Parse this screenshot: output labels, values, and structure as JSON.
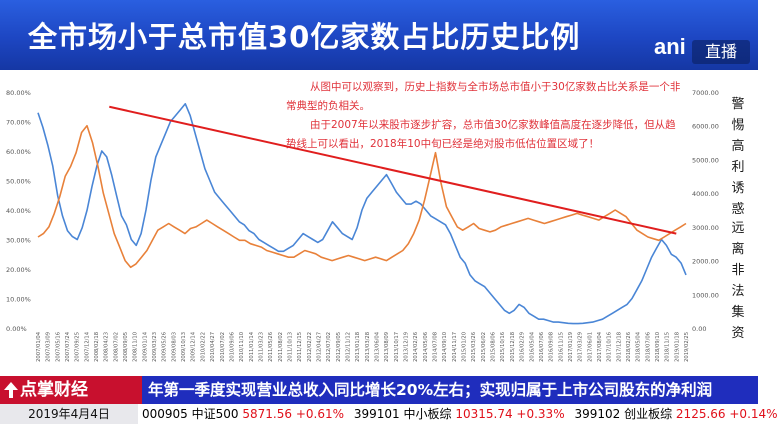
{
  "header": {
    "title": "全市场小于总市值30亿家数占比历史比例",
    "brand": "ani",
    "live_label": "直播"
  },
  "annotation": {
    "line1": "从图中可以观察到，历史上指数与全市场总市值小于30亿家数占比关系是一个非常典型的负相关。",
    "line2": "由于2007年以来股市逐步扩容，总市值30亿家数峰值高度在逐步降低，但从趋势线上可以看出，2018年10中旬已经是绝对股市低估位置区域了！"
  },
  "side_captions": {
    "first": "警惕高利诱惑",
    "second": "远离非法集资"
  },
  "colors": {
    "banner": "#1d46c2",
    "ticker_bg": "#1f2dbd",
    "logo_bg": "#c8102e",
    "up": "#e0101a",
    "series_blue": "#4a86d6",
    "series_orange": "#e8813a",
    "trend_line": "#e01e1e"
  },
  "chart_data": {
    "type": "line",
    "left_axis": {
      "ticks": [
        "0.00%",
        "10.00%",
        "20.00%",
        "30.00%",
        "40.00%",
        "50.00%",
        "60.00%",
        "70.00%",
        "80.00%"
      ],
      "range": [
        0,
        80
      ]
    },
    "right_axis": {
      "ticks": [
        "0.00",
        "1000.00",
        "2000.00",
        "3000.00",
        "4000.00",
        "5000.00",
        "6000.00",
        "7000.00"
      ],
      "range": [
        0,
        7000
      ]
    },
    "x_start": "2007/01/04",
    "x_end": "2019/02/25",
    "x_tick_labels": [
      "2007/01/04",
      "2007/03/09",
      "2007/05/16",
      "2007/07/24",
      "2007/09/25",
      "2007/12/14",
      "2008/02/18",
      "2008/04/23",
      "2008/07/02",
      "2008/09/05",
      "2008/11/10",
      "2009/01/14",
      "2009/03/23",
      "2009/05/26",
      "2009/08/03",
      "2009/10/13",
      "2009/12/14",
      "2010/02/22",
      "2010/04/27",
      "2010/07/02",
      "2010/09/06",
      "2010/11/10",
      "2011/01/14",
      "2011/03/23",
      "2011/05/26",
      "2011/08/02",
      "2011/10/13",
      "2011/12/15",
      "2012/02/22",
      "2012/04/27",
      "2012/07/02",
      "2012/09/05",
      "2012/11/12",
      "2013/01/18",
      "2013/03/28",
      "2013/06/04",
      "2013/08/09",
      "2013/10/17",
      "2013/12/19",
      "2014/02/26",
      "2014/05/06",
      "2014/07/08",
      "2014/09/10",
      "2014/11/17",
      "2015/01/20",
      "2015/03/26",
      "2015/06/02",
      "2015/08/06",
      "2015/10/16",
      "2015/12/18",
      "2016/02/29",
      "2016/05/04",
      "2016/07/06",
      "2016/09/08",
      "2016/11/15",
      "2017/01/19",
      "2017/03/29",
      "2017/06/01",
      "2017/08/04",
      "2017/10/16",
      "2017/12/18",
      "2018/02/26",
      "2018/05/04",
      "2018/07/06",
      "2018/09/10",
      "2018/11/15",
      "2019/01/18",
      "2019/02/25"
    ],
    "series": [
      {
        "color": "#4a86d6",
        "axis": "left",
        "values": [
          73,
          68,
          62,
          55,
          45,
          38,
          33,
          31,
          30,
          34,
          40,
          48,
          55,
          60,
          58,
          52,
          45,
          38,
          35,
          30,
          28,
          32,
          40,
          50,
          58,
          62,
          66,
          70,
          72,
          74,
          76,
          72,
          66,
          60,
          54,
          50,
          46,
          44,
          42,
          40,
          38,
          36,
          35,
          33,
          32,
          30,
          29,
          28,
          27,
          26,
          26,
          27,
          28,
          30,
          32,
          31,
          30,
          29,
          30,
          33,
          36,
          34,
          32,
          31,
          30,
          34,
          40,
          44,
          46,
          48,
          50,
          52,
          49,
          46,
          44,
          42,
          42,
          43,
          42,
          40,
          38,
          37,
          36,
          35,
          32,
          28,
          24,
          22,
          18,
          16,
          15,
          14,
          12,
          10,
          8,
          6,
          5,
          6,
          8,
          7,
          5,
          4,
          3,
          3,
          2.5,
          2,
          2,
          1.8,
          1.6,
          1.5,
          1.5,
          1.6,
          1.8,
          2,
          2.5,
          3,
          4,
          5,
          6,
          7,
          8,
          10,
          13,
          16,
          20,
          24,
          27,
          30,
          28,
          25,
          24,
          22,
          18
        ]
      },
      {
        "color": "#e8813a",
        "axis": "right",
        "values": [
          2700,
          2800,
          3000,
          3400,
          3900,
          4500,
          4800,
          5200,
          5800,
          6000,
          5500,
          4800,
          4000,
          3400,
          2800,
          2400,
          2000,
          1800,
          1900,
          2100,
          2300,
          2600,
          2900,
          3000,
          3100,
          3000,
          2900,
          2800,
          2950,
          3000,
          3100,
          3200,
          3100,
          3000,
          2900,
          2800,
          2700,
          2600,
          2600,
          2500,
          2450,
          2400,
          2300,
          2250,
          2200,
          2150,
          2100,
          2100,
          2200,
          2300,
          2250,
          2200,
          2100,
          2050,
          2000,
          2050,
          2100,
          2150,
          2100,
          2050,
          2000,
          2050,
          2100,
          2050,
          2000,
          2100,
          2200,
          2300,
          2500,
          2800,
          3200,
          3800,
          4500,
          5200,
          4300,
          3600,
          3300,
          3000,
          2900,
          3000,
          3100,
          2950,
          2900,
          2850,
          2900,
          3000,
          3050,
          3100,
          3150,
          3200,
          3250,
          3200,
          3150,
          3100,
          3150,
          3200,
          3250,
          3300,
          3350,
          3400,
          3350,
          3300,
          3250,
          3200,
          3300,
          3400,
          3500,
          3400,
          3300,
          3100,
          2900,
          2800,
          2700,
          2650,
          2600,
          2700,
          2800,
          2900,
          3000,
          3100
        ]
      }
    ],
    "trend_line": {
      "from": [
        0.11,
        75
      ],
      "to": [
        0.985,
        32
      ]
    }
  },
  "ticker": {
    "logo_label": "点掌财经",
    "headline": "年第一季度实现营业总收入同比增长20%左右；实现归属于上市公司股东的净利润",
    "date": "2019年4月4日",
    "quotes": [
      {
        "code": "000905",
        "name": "中证500",
        "value": "5871.56",
        "change": "+0.61%"
      },
      {
        "code": "399101",
        "name": "中小板综",
        "value": "10315.74",
        "change": "+0.33%"
      },
      {
        "code": "399102",
        "name": "创业板综",
        "value": "2125.66",
        "change": "+0.14%"
      }
    ]
  }
}
